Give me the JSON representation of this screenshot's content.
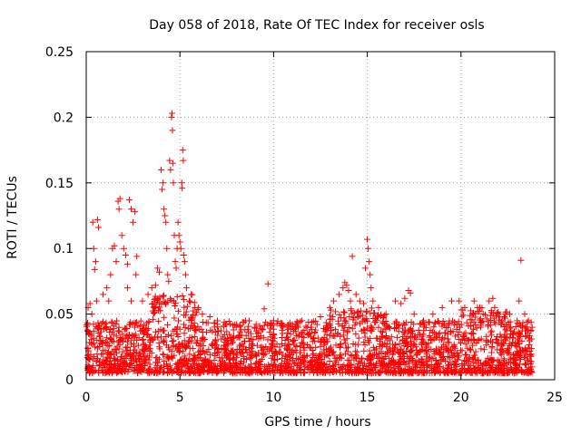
{
  "chart_data": {
    "type": "scatter",
    "title": "Day 058 of 2018, Rate Of TEC Index for receiver osls",
    "xlabel": "GPS time / hours",
    "ylabel": "ROTI / TECUs",
    "xlim": [
      0,
      25
    ],
    "ylim": [
      0,
      0.25
    ],
    "x_ticks": [
      0,
      5,
      10,
      15,
      20,
      25
    ],
    "x_tick_labels": [
      "0",
      "5",
      "10",
      "15",
      "20",
      "25"
    ],
    "y_ticks": [
      0,
      0.05,
      0.1,
      0.15,
      0.2,
      0.25
    ],
    "y_tick_labels": [
      "0",
      "0.05",
      "0.1",
      "0.15",
      "0.2",
      "0.25"
    ],
    "grid": true,
    "marker": "+",
    "color": "#ff0000",
    "series": [
      {
        "name": "ROTI",
        "points": [
          [
            0.1,
            0.055
          ],
          [
            0.2,
            0.058
          ],
          [
            0.3,
            0.05
          ],
          [
            0.35,
            0.12
          ],
          [
            0.4,
            0.1
          ],
          [
            0.45,
            0.084
          ],
          [
            0.5,
            0.09
          ],
          [
            0.6,
            0.122
          ],
          [
            0.65,
            0.116
          ],
          [
            0.55,
            0.06
          ],
          [
            0.9,
            0.065
          ],
          [
            1.1,
            0.07
          ],
          [
            1.3,
            0.08
          ],
          [
            1.4,
            0.1
          ],
          [
            1.5,
            0.102
          ],
          [
            1.6,
            0.09
          ],
          [
            1.7,
            0.136
          ],
          [
            1.8,
            0.138
          ],
          [
            1.75,
            0.13
          ],
          [
            1.9,
            0.11
          ],
          [
            2.0,
            0.1
          ],
          [
            2.1,
            0.095
          ],
          [
            2.2,
            0.088
          ],
          [
            2.3,
            0.137
          ],
          [
            2.4,
            0.13
          ],
          [
            2.5,
            0.12
          ],
          [
            2.6,
            0.128
          ],
          [
            2.7,
            0.094
          ],
          [
            2.65,
            0.08
          ],
          [
            2.2,
            0.07
          ],
          [
            2.4,
            0.06
          ],
          [
            1.2,
            0.06
          ],
          [
            3.0,
            0.06
          ],
          [
            3.3,
            0.065
          ],
          [
            3.5,
            0.07
          ],
          [
            3.7,
            0.072
          ],
          [
            3.8,
            0.085
          ],
          [
            3.9,
            0.082
          ],
          [
            4.0,
            0.16
          ],
          [
            4.05,
            0.145
          ],
          [
            4.1,
            0.15
          ],
          [
            4.15,
            0.13
          ],
          [
            4.2,
            0.125
          ],
          [
            4.25,
            0.12
          ],
          [
            4.3,
            0.1
          ],
          [
            4.35,
            0.08
          ],
          [
            4.4,
            0.075
          ],
          [
            4.45,
            0.167
          ],
          [
            4.5,
            0.16
          ],
          [
            4.55,
            0.2
          ],
          [
            4.58,
            0.203
          ],
          [
            4.6,
            0.19
          ],
          [
            4.62,
            0.165
          ],
          [
            4.65,
            0.15
          ],
          [
            4.7,
            0.11
          ],
          [
            4.75,
            0.09
          ],
          [
            4.8,
            0.085
          ],
          [
            4.85,
            0.1
          ],
          [
            4.9,
            0.12
          ],
          [
            4.95,
            0.11
          ],
          [
            5.0,
            0.105
          ],
          [
            5.05,
            0.1
          ],
          [
            5.1,
            0.15
          ],
          [
            5.12,
            0.146
          ],
          [
            5.15,
            0.175
          ],
          [
            5.18,
            0.167
          ],
          [
            5.2,
            0.095
          ],
          [
            5.25,
            0.09
          ],
          [
            5.3,
            0.08
          ],
          [
            5.35,
            0.07
          ],
          [
            5.5,
            0.06
          ],
          [
            5.6,
            0.065
          ],
          [
            5.8,
            0.055
          ],
          [
            6.2,
            0.05
          ],
          [
            6.6,
            0.048
          ],
          [
            7.0,
            0.045
          ],
          [
            7.5,
            0.042
          ],
          [
            8.0,
            0.04
          ],
          [
            8.5,
            0.045
          ],
          [
            9.0,
            0.04
          ],
          [
            9.5,
            0.054
          ],
          [
            9.7,
            0.073
          ],
          [
            10.0,
            0.045
          ],
          [
            10.5,
            0.04
          ],
          [
            11.0,
            0.042
          ],
          [
            11.5,
            0.045
          ],
          [
            12.0,
            0.04
          ],
          [
            12.5,
            0.048
          ],
          [
            13.0,
            0.055
          ],
          [
            13.2,
            0.06
          ],
          [
            13.5,
            0.065
          ],
          [
            13.7,
            0.07
          ],
          [
            13.8,
            0.074
          ],
          [
            13.9,
            0.072
          ],
          [
            14.0,
            0.068
          ],
          [
            14.1,
            0.06
          ],
          [
            14.2,
            0.094
          ],
          [
            14.4,
            0.065
          ],
          [
            14.6,
            0.06
          ],
          [
            14.8,
            0.058
          ],
          [
            14.9,
            0.085
          ],
          [
            15.0,
            0.107
          ],
          [
            15.05,
            0.1
          ],
          [
            15.1,
            0.09
          ],
          [
            15.15,
            0.08
          ],
          [
            15.2,
            0.07
          ],
          [
            15.3,
            0.06
          ],
          [
            15.6,
            0.055
          ],
          [
            16.0,
            0.05
          ],
          [
            16.5,
            0.06
          ],
          [
            16.8,
            0.058
          ],
          [
            17.0,
            0.062
          ],
          [
            17.2,
            0.068
          ],
          [
            17.3,
            0.066
          ],
          [
            17.5,
            0.05
          ],
          [
            18.0,
            0.045
          ],
          [
            18.5,
            0.05
          ],
          [
            19.0,
            0.055
          ],
          [
            19.5,
            0.06
          ],
          [
            19.9,
            0.06
          ],
          [
            20.2,
            0.055
          ],
          [
            20.7,
            0.06
          ],
          [
            21.0,
            0.055
          ],
          [
            21.5,
            0.06
          ],
          [
            21.7,
            0.062
          ],
          [
            21.8,
            0.055
          ],
          [
            22.0,
            0.05
          ],
          [
            22.3,
            0.048
          ],
          [
            22.6,
            0.05
          ],
          [
            23.0,
            0.045
          ],
          [
            23.1,
            0.06
          ],
          [
            23.2,
            0.091
          ],
          [
            23.4,
            0.05
          ],
          [
            23.6,
            0.045
          ],
          [
            23.8,
            0.04
          ]
        ]
      }
    ],
    "baseline_band": {
      "x_range": [
        0,
        23.8
      ],
      "y_floor": 0.005,
      "y_ceiling_typical": 0.045
    }
  }
}
